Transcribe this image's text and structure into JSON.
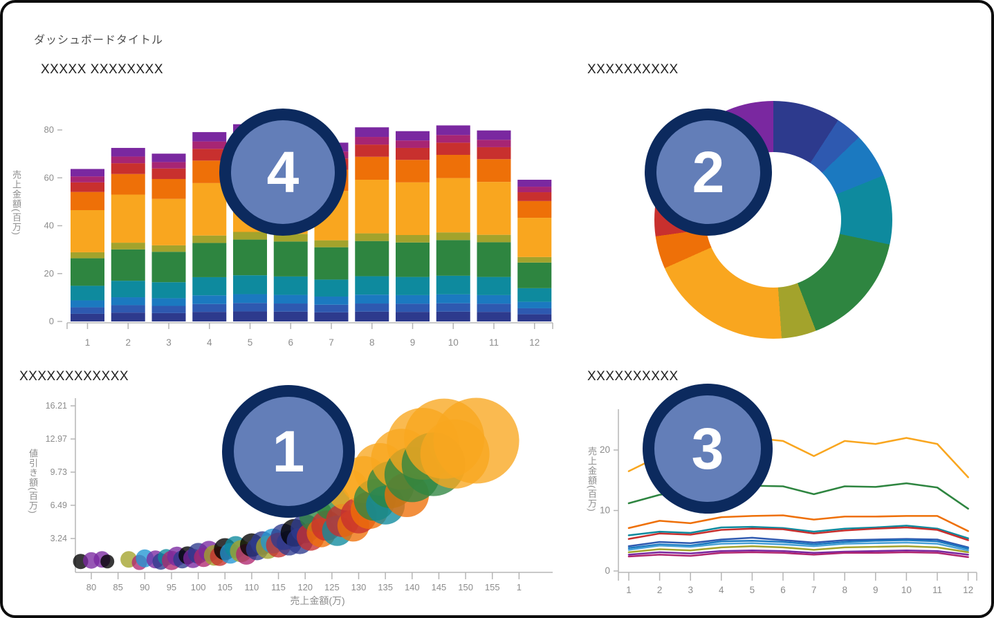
{
  "page": {
    "title": "ダッシュボードタイトル"
  },
  "panels": {
    "bar": {
      "title": "XXXXX XXXXXXXX",
      "badge": "4"
    },
    "donut": {
      "title": "XXXXXXXXXX",
      "badge": "2"
    },
    "bubble": {
      "title": "XXXXXXXXXXXX",
      "badge": "1"
    },
    "line": {
      "title": "XXXXXXXXXX",
      "badge": "3"
    }
  },
  "colors": {
    "navy": "#2d3a8d",
    "royal": "#2e59b0",
    "cerulean": "#1b79c0",
    "lightblue": "#49a2d8",
    "cyan": "#2196d4",
    "teal": "#0e8a9e",
    "green": "#2e8540",
    "olive": "#a3a32c",
    "amber": "#f9a61f",
    "orange": "#ee7008",
    "red": "#c8302e",
    "crimson": "#a72573",
    "purple": "#7a28a0",
    "magenta": "#b0266f",
    "axis": "#b5b5b5",
    "tick_text": "#8c8c8c",
    "badge_ring": "#0c2a5e",
    "badge_fill": "#7c96d2"
  },
  "chart_data": [
    {
      "id": "bar",
      "type": "bar",
      "stacked": true,
      "title": "XXXXX XXXXXXXX",
      "ylabel": "売上金額(百万)",
      "categories": [
        1,
        2,
        3,
        4,
        5,
        6,
        7,
        8,
        9,
        10,
        11,
        12
      ],
      "yticks": [
        0,
        20,
        40,
        60,
        80
      ],
      "ylim": [
        0,
        93
      ],
      "grid": false,
      "legend": "none",
      "series": [
        {
          "color": "navy",
          "values": [
            3.2,
            3.7,
            3.5,
            4.0,
            4.2,
            4.1,
            3.8,
            4.1,
            4.0,
            4.1,
            4.0,
            3.0
          ]
        },
        {
          "color": "royal",
          "values": [
            2.7,
            3.1,
            3.0,
            3.3,
            3.5,
            3.4,
            3.2,
            3.4,
            3.4,
            3.5,
            3.4,
            2.5
          ]
        },
        {
          "color": "cerulean",
          "values": [
            2.9,
            3.3,
            3.2,
            3.6,
            3.7,
            3.6,
            3.4,
            3.7,
            3.6,
            3.7,
            3.6,
            2.7
          ]
        },
        {
          "color": "teal",
          "values": [
            6.1,
            6.9,
            6.7,
            7.6,
            7.9,
            7.7,
            7.1,
            7.7,
            7.6,
            7.8,
            7.6,
            5.7
          ]
        },
        {
          "color": "green",
          "values": [
            11.5,
            13.1,
            12.7,
            14.3,
            14.9,
            14.6,
            13.5,
            14.7,
            14.4,
            14.9,
            14.5,
            10.7
          ]
        },
        {
          "color": "olive",
          "values": [
            2.5,
            2.8,
            2.7,
            3.1,
            3.2,
            3.2,
            2.9,
            3.2,
            3.1,
            3.2,
            3.1,
            2.3
          ]
        },
        {
          "color": "amber",
          "values": [
            17.6,
            20.1,
            19.4,
            21.9,
            22.8,
            22.3,
            20.6,
            22.4,
            22.0,
            22.7,
            22.1,
            16.4
          ]
        },
        {
          "color": "orange",
          "values": [
            7.6,
            8.6,
            8.3,
            9.4,
            9.8,
            9.6,
            8.9,
            9.6,
            9.4,
            9.7,
            9.5,
            7.0
          ]
        },
        {
          "color": "red",
          "values": [
            4.0,
            4.5,
            4.4,
            4.9,
            5.1,
            5.0,
            4.7,
            5.1,
            5.0,
            5.1,
            5.0,
            3.7
          ]
        },
        {
          "color": "crimson",
          "values": [
            2.5,
            2.8,
            2.7,
            3.1,
            3.2,
            3.2,
            2.9,
            3.2,
            3.1,
            3.2,
            3.1,
            2.3
          ]
        },
        {
          "color": "purple",
          "values": [
            3.1,
            3.6,
            3.5,
            3.9,
            4.1,
            4.0,
            3.7,
            4.0,
            3.9,
            4.0,
            3.9,
            2.9
          ]
        }
      ]
    },
    {
      "id": "donut",
      "type": "pie",
      "donut": true,
      "title": "XXXXXXXXXX",
      "slices": [
        {
          "color": "navy",
          "degrees": 33
        },
        {
          "color": "royal",
          "degrees": 13
        },
        {
          "color": "cerulean",
          "degrees": 22
        },
        {
          "color": "teal",
          "degrees": 34
        },
        {
          "color": "green",
          "degrees": 57
        },
        {
          "color": "olive",
          "degrees": 17
        },
        {
          "color": "amber",
          "degrees": 70
        },
        {
          "color": "orange",
          "degrees": 16
        },
        {
          "color": "red",
          "degrees": 34
        },
        {
          "color": "crimson",
          "degrees": 33
        },
        {
          "color": "purple",
          "degrees": 31
        }
      ]
    },
    {
      "id": "bubble",
      "type": "scatter",
      "title": "XXXXXXXXXXXX",
      "xlabel": "売上金額(万)",
      "ylabel": "値引き額(百万)",
      "xticks": [
        80,
        85,
        90,
        95,
        100,
        105,
        110,
        115,
        120,
        125,
        130,
        135,
        140,
        145,
        150,
        155
      ],
      "xtick_extra": {
        "value": 160,
        "label": "1"
      },
      "yticks": [
        3.24,
        6.49,
        9.73,
        12.97,
        16.21
      ],
      "xlim": [
        77,
        162
      ],
      "ylim": [
        0,
        16.8
      ],
      "points": [
        [
          78,
          1.0,
          11,
          "blue"
        ],
        [
          80,
          1.1,
          12,
          "purple"
        ],
        [
          82,
          1.2,
          12,
          "purple"
        ],
        [
          83,
          1.0,
          10,
          "blue"
        ],
        [
          87,
          1.2,
          12,
          "olive"
        ],
        [
          89,
          0.9,
          11,
          "magenta"
        ],
        [
          90,
          1.3,
          13,
          "cyan"
        ],
        [
          92,
          1.2,
          13,
          "purple"
        ],
        [
          93,
          1.0,
          12,
          "navy"
        ],
        [
          94,
          1.4,
          12,
          "teal"
        ],
        [
          95,
          1.1,
          14,
          "magenta"
        ],
        [
          96,
          1.5,
          14,
          "purple"
        ],
        [
          97,
          1.2,
          13,
          "navy"
        ],
        [
          98,
          1.6,
          13,
          "blue"
        ],
        [
          99,
          1.3,
          14,
          "purple"
        ],
        [
          100,
          1.8,
          15,
          "navy"
        ],
        [
          101,
          1.4,
          14,
          "magenta"
        ],
        [
          102,
          2.0,
          15,
          "purple"
        ],
        [
          103,
          1.6,
          15,
          "olive"
        ],
        [
          104,
          1.5,
          14,
          "red"
        ],
        [
          105,
          2.2,
          16,
          "blue"
        ],
        [
          106,
          1.8,
          15,
          "cyan"
        ],
        [
          107,
          2.4,
          16,
          "teal"
        ],
        [
          108,
          2.0,
          16,
          "olive"
        ],
        [
          109,
          1.7,
          15,
          "magenta"
        ],
        [
          110,
          2.6,
          17,
          "blue"
        ],
        [
          111,
          2.2,
          16,
          "navy"
        ],
        [
          112,
          2.8,
          17,
          "navy"
        ],
        [
          113,
          2.4,
          17,
          "olive"
        ],
        [
          114,
          3.0,
          18,
          "cyan"
        ],
        [
          115,
          2.6,
          18,
          "red"
        ],
        [
          116,
          3.4,
          19,
          "navy"
        ],
        [
          117,
          2.8,
          18,
          "navy"
        ],
        [
          118,
          3.8,
          20,
          "blue"
        ],
        [
          119,
          3.0,
          19,
          "navy"
        ],
        [
          120,
          4.2,
          21,
          "navy"
        ],
        [
          121,
          3.4,
          20,
          "red"
        ],
        [
          122,
          5.5,
          24,
          "green"
        ],
        [
          123,
          3.8,
          21,
          "orange"
        ],
        [
          124,
          4.5,
          22,
          "red"
        ],
        [
          125,
          6.8,
          26,
          "green"
        ],
        [
          126,
          4.0,
          22,
          "teal"
        ],
        [
          127,
          5.0,
          24,
          "red"
        ],
        [
          128,
          8.0,
          30,
          "amber"
        ],
        [
          129,
          4.5,
          23,
          "orange"
        ],
        [
          130,
          5.5,
          26,
          "red"
        ],
        [
          131,
          9.0,
          34,
          "amber"
        ],
        [
          132,
          6.0,
          27,
          "orange"
        ],
        [
          133,
          7.0,
          30,
          "green"
        ],
        [
          134,
          10.0,
          38,
          "amber"
        ],
        [
          135,
          6.5,
          28,
          "teal"
        ],
        [
          136,
          8.5,
          34,
          "green"
        ],
        [
          138,
          11.0,
          44,
          "amber"
        ],
        [
          139,
          7.5,
          32,
          "orange"
        ],
        [
          140,
          9.5,
          40,
          "green"
        ],
        [
          142,
          12.5,
          52,
          "amber"
        ],
        [
          144,
          10.5,
          46,
          "green"
        ],
        [
          146,
          13.0,
          58,
          "amber"
        ],
        [
          148,
          11.5,
          50,
          "amber"
        ],
        [
          152,
          12.8,
          62,
          "amber"
        ]
      ]
    },
    {
      "id": "line",
      "type": "line",
      "title": "XXXXXXXXXX",
      "ylabel": "売上金額(百万)",
      "categories": [
        1,
        2,
        3,
        4,
        5,
        6,
        7,
        8,
        9,
        10,
        11,
        12
      ],
      "yticks": [
        0,
        10,
        20
      ],
      "ylim": [
        0,
        26
      ],
      "grid": false,
      "legend": "none",
      "series": [
        {
          "color": "amber",
          "values": [
            16.5,
            19.0,
            18.5,
            20.5,
            22.0,
            21.5,
            19.0,
            21.5,
            21.0,
            22.0,
            21.0,
            15.5
          ]
        },
        {
          "color": "green",
          "values": [
            11.2,
            12.6,
            13.2,
            14.0,
            14.1,
            14.0,
            12.7,
            14.0,
            13.9,
            14.5,
            13.8,
            10.3
          ]
        },
        {
          "color": "orange",
          "values": [
            7.1,
            8.3,
            7.9,
            8.9,
            9.1,
            9.2,
            8.5,
            9.0,
            9.0,
            9.1,
            9.1,
            6.6
          ]
        },
        {
          "color": "teal",
          "values": [
            5.9,
            6.5,
            6.3,
            7.2,
            7.3,
            7.1,
            6.5,
            7.0,
            7.2,
            7.5,
            7.0,
            5.4
          ]
        },
        {
          "color": "red",
          "values": [
            5.3,
            6.2,
            6.0,
            6.8,
            7.0,
            6.9,
            6.2,
            6.7,
            7.0,
            7.2,
            6.8,
            5.1
          ]
        },
        {
          "color": "royal",
          "values": [
            4.1,
            4.8,
            4.6,
            5.2,
            5.5,
            5.1,
            4.7,
            5.1,
            5.2,
            5.3,
            5.2,
            3.9
          ]
        },
        {
          "color": "cerulean",
          "values": [
            3.8,
            4.4,
            4.2,
            4.9,
            5.0,
            4.8,
            4.4,
            4.8,
            5.0,
            5.1,
            4.9,
            3.7
          ]
        },
        {
          "color": "lightblue",
          "values": [
            3.5,
            4.2,
            4.0,
            4.5,
            4.6,
            4.4,
            4.1,
            4.5,
            4.6,
            4.7,
            4.5,
            3.4
          ]
        },
        {
          "color": "olive",
          "values": [
            3.1,
            3.6,
            3.4,
            3.9,
            4.1,
            3.9,
            3.5,
            3.9,
            4.0,
            4.1,
            3.9,
            3.1
          ]
        },
        {
          "color": "purple",
          "values": [
            2.7,
            3.1,
            2.9,
            3.3,
            3.4,
            3.3,
            3.0,
            3.2,
            3.3,
            3.4,
            3.3,
            2.7
          ]
        },
        {
          "color": "magenta",
          "values": [
            2.4,
            2.7,
            2.5,
            3.0,
            3.1,
            3.0,
            2.7,
            3.0,
            3.0,
            3.1,
            3.0,
            2.3
          ]
        }
      ]
    }
  ]
}
